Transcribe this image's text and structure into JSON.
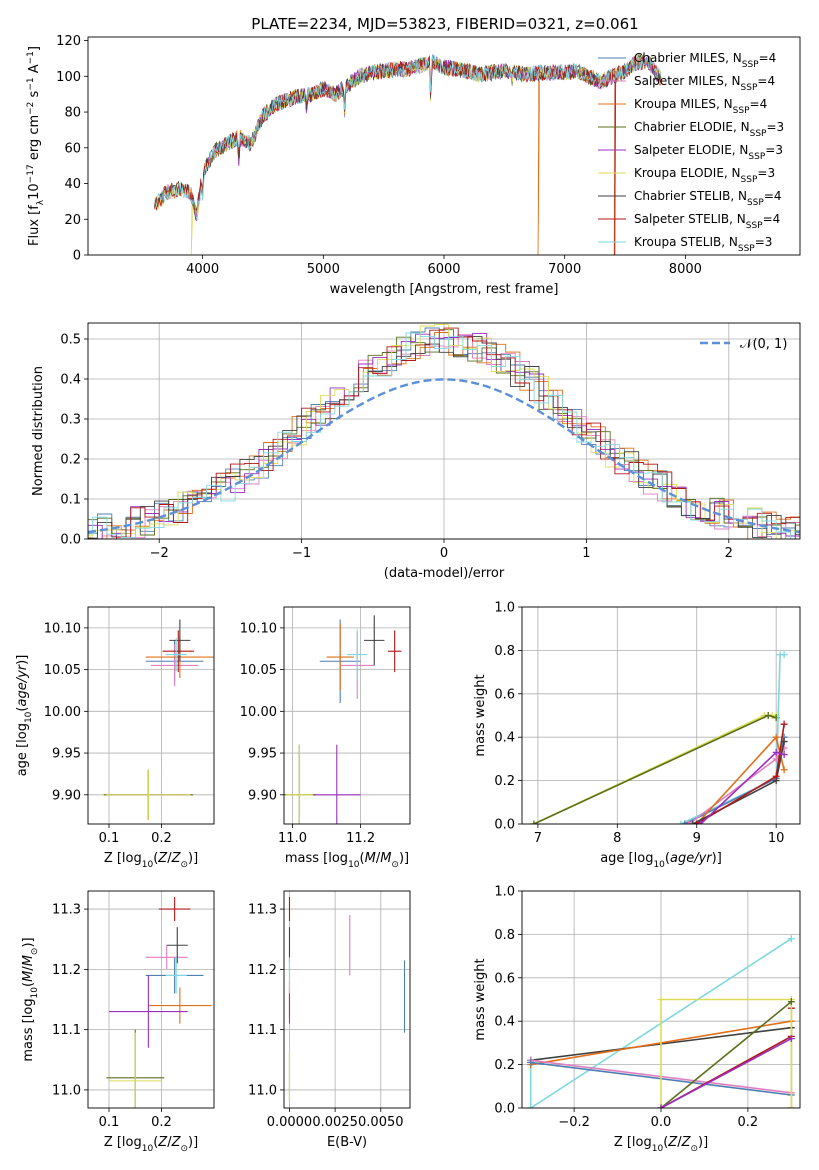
{
  "figure": {
    "title": "PLATE=2234, MJD=53823, FIBERID=0321, z=0.061"
  },
  "colors": {
    "Chabrier MILES": "#4f7fb3",
    "Salpeter MILES": "#e07fbf",
    "Kroupa MILES": "#e0701a",
    "Chabrier ELODIE": "#5a6f1c",
    "Salpeter ELODIE": "#9b2fbf",
    "Kroupa ELODIE": "#dddd55",
    "Chabrier STELIB": "#404040",
    "Salpeter STELIB": "#b01818",
    "Kroupa STELIB": "#7fd8e0",
    "normal_curve": "#5b8fd8"
  },
  "chart_data": [
    {
      "id": "spectrum",
      "type": "line",
      "xlabel": "wavelength [Angstrom, rest frame]",
      "ylabel": "Flux [f_λ 10^-17 erg cm^-2 s^-1 A^-1]",
      "xlim": [
        3050,
        8950
      ],
      "ylim": [
        0,
        122
      ],
      "xticks": [
        4000,
        5000,
        6000,
        7000,
        8000
      ],
      "yticks": [
        0,
        20,
        40,
        60,
        80,
        100,
        120
      ],
      "legend_position": "top-right",
      "legend": [
        {
          "name": "Chabrier MILES",
          "nssp": "4"
        },
        {
          "name": "Salpeter MILES",
          "nssp": "4"
        },
        {
          "name": "Kroupa MILES",
          "nssp": "4"
        },
        {
          "name": "Chabrier ELODIE",
          "nssp": "3"
        },
        {
          "name": "Salpeter ELODIE",
          "nssp": "3"
        },
        {
          "name": "Kroupa ELODIE",
          "nssp": "3"
        },
        {
          "name": "Chabrier STELIB",
          "nssp": "4"
        },
        {
          "name": "Salpeter STELIB",
          "nssp": "4"
        },
        {
          "name": "Kroupa STELIB",
          "nssp": "3"
        }
      ],
      "spectrum_envelope": {
        "x": [
          3600,
          3700,
          3800,
          3900,
          3950,
          4000,
          4100,
          4200,
          4300,
          4400,
          4500,
          4600,
          4700,
          4800,
          4900,
          5000,
          5100,
          5200,
          5300,
          5400,
          5500,
          5600,
          5700,
          5800,
          5900,
          6000,
          6100,
          6200,
          6300,
          6400,
          6500,
          6600,
          6700,
          6800,
          6900,
          7000,
          7100,
          7200,
          7300,
          7400,
          7500,
          7600,
          7700,
          7800
        ],
        "y": [
          28,
          35,
          37,
          35,
          22,
          46,
          58,
          62,
          66,
          62,
          78,
          84,
          87,
          89,
          90,
          93,
          90,
          95,
          100,
          102,
          103,
          104,
          104,
          106,
          108,
          105,
          104,
          103,
          101,
          102,
          103,
          102,
          101,
          102,
          102,
          102,
          103,
          100,
          97,
          100,
          103,
          108,
          108,
          98
        ]
      },
      "cutoffs": [
        {
          "model": "Kroupa ELODIE",
          "x": 3905
        },
        {
          "model": "Kroupa MILES",
          "x": 6780
        },
        {
          "model": "Kroupa MILES",
          "x": 7410
        },
        {
          "model": "Salpeter STELIB",
          "x": 7415
        }
      ]
    },
    {
      "id": "residuals",
      "type": "histogram",
      "xlabel": "(data-model)/error",
      "ylabel": "Normed distribution",
      "xlim": [
        -2.5,
        2.5
      ],
      "ylim": [
        0,
        0.54
      ],
      "xticks": [
        -2,
        -1,
        0,
        1,
        2
      ],
      "yticks": [
        0.0,
        0.1,
        0.2,
        0.3,
        0.4,
        0.5
      ],
      "grid": true,
      "legend_position": "top-right",
      "legend": [
        "𝒩(0, 1)"
      ],
      "normal_curve": {
        "mean": 0,
        "sigma": 1
      }
    },
    {
      "id": "age-vs-Z",
      "type": "errorbar",
      "xlabel": "Z [log10(Z/Z⊙)]",
      "ylabel": "age [log10(age/yr)]",
      "xlim": [
        0.06,
        0.3
      ],
      "ylim": [
        9.865,
        10.125
      ],
      "xticks": [
        0.1,
        0.2
      ],
      "yticks": [
        9.9,
        9.95,
        10.0,
        10.05,
        10.1
      ],
      "grid": true,
      "points": [
        {
          "model": "Chabrier MILES",
          "x": 0.225,
          "xerr": 0.055,
          "y": 10.06,
          "yerr": 0.025
        },
        {
          "model": "Salpeter MILES",
          "x": 0.225,
          "xerr": 0.045,
          "y": 10.055,
          "yerr": 0.025
        },
        {
          "model": "Kroupa MILES",
          "x": 0.235,
          "xerr": 0.065,
          "y": 10.065,
          "yerr": 0.025
        },
        {
          "model": "Chabrier ELODIE",
          "x": 0.175,
          "xerr": 0.085,
          "y": 9.9,
          "yerr": 0.03
        },
        {
          "model": "Salpeter ELODIE",
          "x": 0.175,
          "xerr": 0.075,
          "y": 9.9,
          "yerr": 0.03
        },
        {
          "model": "Kroupa ELODIE",
          "x": 0.175,
          "xerr": 0.08,
          "y": 9.9,
          "yerr": 0.03
        },
        {
          "model": "Chabrier STELIB",
          "x": 0.235,
          "xerr": 0.02,
          "y": 10.085,
          "yerr": 0.025
        },
        {
          "model": "Salpeter STELIB",
          "x": 0.232,
          "xerr": 0.03,
          "y": 10.072,
          "yerr": 0.025
        },
        {
          "model": "Kroupa STELIB",
          "x": 0.228,
          "xerr": 0.02,
          "y": 10.068,
          "yerr": 0.02
        }
      ]
    },
    {
      "id": "age-vs-mass",
      "type": "errorbar",
      "xlabel": "mass [log10(M/M⊙)]",
      "ylabel": "",
      "xlim": [
        10.975,
        11.345
      ],
      "ylim": [
        9.865,
        10.125
      ],
      "xticks": [
        11.0,
        11.2
      ],
      "yticks": [
        9.9,
        9.95,
        10.0,
        10.05,
        10.1
      ],
      "grid": true,
      "points": [
        {
          "model": "Chabrier MILES",
          "x": 11.14,
          "xerr": 0.06,
          "y": 10.06,
          "yerr": 0.05
        },
        {
          "model": "Salpeter MILES",
          "x": 11.19,
          "xerr": 0.05,
          "y": 10.055,
          "yerr": 0.04
        },
        {
          "model": "Kroupa MILES",
          "x": 11.14,
          "xerr": 0.04,
          "y": 10.065,
          "yerr": 0.04
        },
        {
          "model": "Chabrier ELODIE",
          "x": 11.02,
          "xerr": 0.05,
          "y": 9.9,
          "yerr": 0.06
        },
        {
          "model": "Salpeter ELODIE",
          "x": 11.13,
          "xerr": 0.07,
          "y": 9.9,
          "yerr": 0.06
        },
        {
          "model": "Kroupa ELODIE",
          "x": 11.02,
          "xerr": 0.04,
          "y": 9.9,
          "yerr": 0.06
        },
        {
          "model": "Chabrier STELIB",
          "x": 11.24,
          "xerr": 0.03,
          "y": 10.085,
          "yerr": 0.03
        },
        {
          "model": "Salpeter STELIB",
          "x": 11.3,
          "xerr": 0.02,
          "y": 10.072,
          "yerr": 0.025
        },
        {
          "model": "Kroupa STELIB",
          "x": 11.19,
          "xerr": 0.03,
          "y": 10.068,
          "yerr": 0.03
        }
      ]
    },
    {
      "id": "weights-vs-age",
      "type": "line",
      "xlabel": "age [log10(age/yr)]",
      "ylabel": "mass weight",
      "xlim": [
        6.8,
        10.3
      ],
      "ylim": [
        0,
        1
      ],
      "xticks": [
        7,
        8,
        9,
        10
      ],
      "yticks": [
        0.0,
        0.2,
        0.4,
        0.6,
        0.8,
        1.0
      ],
      "grid": true,
      "series": [
        {
          "model": "Kroupa ELODIE",
          "x": [
            6.95,
            9.85,
            9.95,
            10.0
          ],
          "y": [
            0.0,
            0.5,
            0.5,
            0.5
          ]
        },
        {
          "model": "Chabrier ELODIE",
          "x": [
            6.95,
            9.9,
            10.0
          ],
          "y": [
            0.0,
            0.5,
            0.49
          ]
        },
        {
          "model": "Kroupa STELIB",
          "x": [
            8.8,
            10.0,
            10.05,
            10.1
          ],
          "y": [
            0.0,
            0.21,
            0.78,
            0.78
          ]
        },
        {
          "model": "Chabrier MILES",
          "x": [
            8.85,
            10.0,
            10.1
          ],
          "y": [
            0.0,
            0.21,
            0.4
          ]
        },
        {
          "model": "Salpeter MILES",
          "x": [
            8.9,
            10.0,
            10.1
          ],
          "y": [
            0.0,
            0.3,
            0.35
          ]
        },
        {
          "model": "Kroupa MILES",
          "x": [
            9.0,
            10.0,
            10.1
          ],
          "y": [
            0.0,
            0.4,
            0.25
          ]
        },
        {
          "model": "Chabrier STELIB",
          "x": [
            8.95,
            10.0,
            10.1
          ],
          "y": [
            0.0,
            0.2,
            0.38
          ]
        },
        {
          "model": "Salpeter STELIB",
          "x": [
            9.0,
            10.0,
            10.1
          ],
          "y": [
            0.0,
            0.22,
            0.46
          ]
        },
        {
          "model": "Salpeter ELODIE",
          "x": [
            9.05,
            10.0,
            10.1
          ],
          "y": [
            0.0,
            0.33,
            0.32
          ]
        }
      ]
    },
    {
      "id": "mass-vs-Z",
      "type": "errorbar",
      "xlabel": "Z [log10(Z/Z⊙)]",
      "ylabel": "mass [log10(M/M⊙)]",
      "xlim": [
        0.06,
        0.3
      ],
      "ylim": [
        10.97,
        11.33
      ],
      "xticks": [
        0.1,
        0.2
      ],
      "yticks": [
        11.0,
        11.1,
        11.2,
        11.3
      ],
      "grid": true,
      "points": [
        {
          "model": "Chabrier MILES",
          "x": 0.225,
          "xerr": 0.055,
          "y": 11.19,
          "yerr": 0.03
        },
        {
          "model": "Salpeter MILES",
          "x": 0.21,
          "xerr": 0.04,
          "y": 11.22,
          "yerr": 0.02
        },
        {
          "model": "Kroupa MILES",
          "x": 0.235,
          "xerr": 0.06,
          "y": 11.14,
          "yerr": 0.03
        },
        {
          "model": "Chabrier ELODIE",
          "x": 0.15,
          "xerr": 0.055,
          "y": 11.02,
          "yerr": 0.08
        },
        {
          "model": "Salpeter ELODIE",
          "x": 0.175,
          "xerr": 0.075,
          "y": 11.13,
          "yerr": 0.06
        },
        {
          "model": "Kroupa ELODIE",
          "x": 0.15,
          "xerr": 0.05,
          "y": 11.015,
          "yerr": 0.08
        },
        {
          "model": "Chabrier STELIB",
          "x": 0.23,
          "xerr": 0.02,
          "y": 11.24,
          "yerr": 0.03
        },
        {
          "model": "Salpeter STELIB",
          "x": 0.225,
          "xerr": 0.03,
          "y": 11.3,
          "yerr": 0.02
        },
        {
          "model": "Kroupa STELIB",
          "x": 0.228,
          "xerr": 0.02,
          "y": 11.19,
          "yerr": 0.03
        }
      ]
    },
    {
      "id": "mass-vs-ebv",
      "type": "errorbar",
      "xlabel": "E(B-V)",
      "ylabel": "",
      "xlim": [
        -0.0003,
        0.0066
      ],
      "ylim": [
        10.97,
        11.33
      ],
      "xticks": [
        0.0,
        0.0025,
        0.005
      ],
      "xticklabels": [
        "0.0000",
        "0.0025",
        "0.0050"
      ],
      "yticks": [
        11.0,
        11.1,
        11.2,
        11.3
      ],
      "grid": true,
      "points": [
        {
          "model": "Chabrier MILES",
          "x": 0.0063,
          "xerr": 0,
          "y": 11.155,
          "yerr": 0.06
        },
        {
          "model": "Salpeter MILES",
          "x": 0.0033,
          "xerr": 0,
          "y": 11.24,
          "yerr": 0.05
        },
        {
          "model": "Kroupa MILES",
          "x": 0.0,
          "xerr": 0,
          "y": 11.15,
          "yerr": 0.03
        },
        {
          "model": "Chabrier ELODIE",
          "x": 0.0,
          "xerr": 0,
          "y": 11.02,
          "yerr": 0.04
        },
        {
          "model": "Salpeter ELODIE",
          "x": 0.0,
          "xerr": 0,
          "y": 11.14,
          "yerr": 0.03
        },
        {
          "model": "Kroupa ELODIE",
          "x": 0.0,
          "xerr": 0,
          "y": 11.02,
          "yerr": 0.04
        },
        {
          "model": "Chabrier STELIB",
          "x": 0.0,
          "xerr": 0,
          "y": 11.24,
          "yerr": 0.03
        },
        {
          "model": "Salpeter STELIB",
          "x": 0.0,
          "xerr": 0,
          "y": 11.3,
          "yerr": 0.02
        },
        {
          "model": "Kroupa STELIB",
          "x": 0.0,
          "xerr": 0,
          "y": 11.19,
          "yerr": 0.03
        }
      ]
    },
    {
      "id": "weights-vs-Z",
      "type": "line",
      "xlabel": "Z [log10(Z/Z⊙)]",
      "ylabel": "mass weight",
      "xlim": [
        -0.32,
        0.32
      ],
      "ylim": [
        0,
        1
      ],
      "xticks": [
        -0.2,
        0.0,
        0.2
      ],
      "yticks": [
        0.0,
        0.2,
        0.4,
        0.6,
        0.8,
        1.0
      ],
      "grid": true,
      "series": [
        {
          "model": "Kroupa STELIB",
          "x": [
            -0.3,
            -0.3,
            0.3
          ],
          "y": [
            0.21,
            0.0,
            0.78
          ]
        },
        {
          "model": "Chabrier STELIB",
          "x": [
            -0.3,
            0.3,
            0.3
          ],
          "y": [
            0.22,
            0.37,
            0.0
          ]
        },
        {
          "model": "Kroupa MILES",
          "x": [
            -0.3,
            0.3
          ],
          "y": [
            0.2,
            0.4
          ]
        },
        {
          "model": "Salpeter MILES",
          "x": [
            -0.3,
            0.3
          ],
          "y": [
            0.22,
            0.07
          ]
        },
        {
          "model": "Chabrier MILES",
          "x": [
            -0.3,
            0.3
          ],
          "y": [
            0.21,
            0.06
          ]
        },
        {
          "model": "Salpeter STELIB",
          "x": [
            0.0,
            0.3,
            0.3
          ],
          "y": [
            0.0,
            0.33,
            0.46
          ]
        },
        {
          "model": "Kroupa ELODIE",
          "x": [
            0.0,
            0.0,
            0.3,
            0.3
          ],
          "y": [
            0.0,
            0.5,
            0.5,
            0.0
          ]
        },
        {
          "model": "Chabrier ELODIE",
          "x": [
            0.0,
            0.3
          ],
          "y": [
            0.0,
            0.49
          ]
        },
        {
          "model": "Salpeter ELODIE",
          "x": [
            0.0,
            0.3
          ],
          "y": [
            0.0,
            0.32
          ]
        }
      ]
    }
  ]
}
